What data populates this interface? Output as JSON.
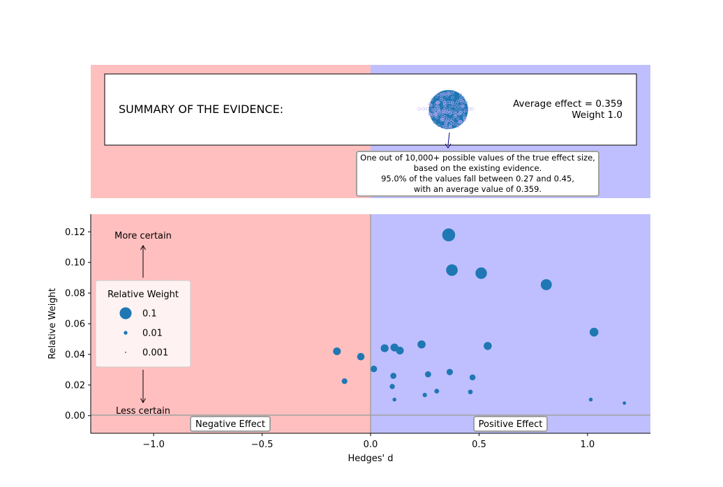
{
  "summary": {
    "title": "SUMMARY OF THE EVIDENCE:",
    "average_label": "Average effect = 0.359",
    "weight_label": "Weight 1.0",
    "note_lines": [
      "One out of 10,000+ possible values of the true effect size,",
      "based on the existing evidence.",
      "95.0% of the values fall between 0.27 and 0.45,",
      "with an average value of 0.359."
    ],
    "xlim": [
      -1.29,
      1.29
    ],
    "average_effect": 0.359,
    "colors": {
      "negative": "#ffbfbf",
      "positive": "#bfbfff",
      "marker": "#1f77b4"
    }
  },
  "annotations": {
    "more_certain": "More certain",
    "less_certain": "Less certain",
    "negative_effect": "Negative Effect",
    "positive_effect": "Positive Effect"
  },
  "legend": {
    "title": "Relative Weight",
    "entries": [
      {
        "label": "0.1",
        "weight": 0.1
      },
      {
        "label": "0.01",
        "weight": 0.01
      },
      {
        "label": "0.001",
        "weight": 0.001
      }
    ]
  },
  "chart_data": {
    "type": "scatter",
    "title": "",
    "xlabel": "Hedges' d",
    "ylabel": "Relative Weight",
    "xlim": [
      -1.29,
      1.29
    ],
    "ylim": [
      -0.0115,
      0.1315
    ],
    "xticks": [
      -1.0,
      -0.5,
      0.0,
      0.5,
      1.0
    ],
    "xtick_labels": [
      "−1.0",
      "−0.5",
      "0.0",
      "0.5",
      "1.0"
    ],
    "yticks": [
      0.0,
      0.02,
      0.04,
      0.06,
      0.08,
      0.1,
      0.12
    ],
    "ytick_labels": [
      "0.00",
      "0.02",
      "0.04",
      "0.06",
      "0.08",
      "0.10",
      "0.12"
    ],
    "grid": false,
    "legend_position": "left",
    "reference_lines": {
      "vertical_x": 0.0,
      "horizontal_y": 0.0
    },
    "points": [
      {
        "x": 0.36,
        "y": 0.118
      },
      {
        "x": 0.375,
        "y": 0.095
      },
      {
        "x": 0.51,
        "y": 0.093
      },
      {
        "x": 0.81,
        "y": 0.0855
      },
      {
        "x": 1.03,
        "y": 0.0545
      },
      {
        "x": 0.54,
        "y": 0.0455
      },
      {
        "x": 0.235,
        "y": 0.0465
      },
      {
        "x": 0.065,
        "y": 0.044
      },
      {
        "x": 0.11,
        "y": 0.0445
      },
      {
        "x": 0.135,
        "y": 0.0425
      },
      {
        "x": -0.155,
        "y": 0.042
      },
      {
        "x": -0.045,
        "y": 0.0385
      },
      {
        "x": 0.015,
        "y": 0.0305
      },
      {
        "x": 0.365,
        "y": 0.0285
      },
      {
        "x": 0.265,
        "y": 0.027
      },
      {
        "x": 0.105,
        "y": 0.026
      },
      {
        "x": 0.47,
        "y": 0.025
      },
      {
        "x": -0.12,
        "y": 0.0225
      },
      {
        "x": 0.1,
        "y": 0.019
      },
      {
        "x": 0.305,
        "y": 0.016
      },
      {
        "x": 0.46,
        "y": 0.0155
      },
      {
        "x": 0.25,
        "y": 0.0135
      },
      {
        "x": 0.11,
        "y": 0.0105
      },
      {
        "x": 1.015,
        "y": 0.0105
      },
      {
        "x": 1.17,
        "y": 0.0082
      }
    ]
  }
}
